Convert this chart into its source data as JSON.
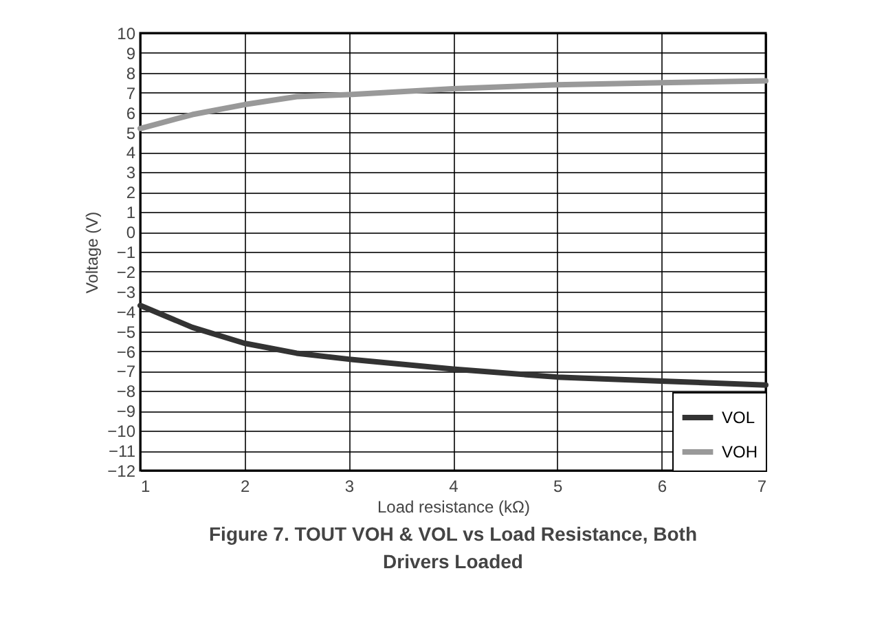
{
  "chart_data": {
    "type": "line",
    "title": "Figure 7. TOUT VOH & VOL vs Load Resistance, Both Drivers Loaded",
    "xlabel": "Load resistance (kΩ)",
    "ylabel": "Voltage (V)",
    "x": [
      1,
      1.5,
      2,
      2.5,
      3,
      4,
      5,
      6,
      7
    ],
    "series": [
      {
        "name": "VOL",
        "color": "#333333",
        "values": [
          -3.7,
          -4.8,
          -5.6,
          -6.1,
          -6.4,
          -6.9,
          -7.3,
          -7.5,
          -7.7
        ]
      },
      {
        "name": "VOH",
        "color": "#999999",
        "values": [
          5.2,
          5.9,
          6.4,
          6.8,
          6.9,
          7.2,
          7.4,
          7.5,
          7.6
        ]
      }
    ],
    "xlim": [
      1,
      7
    ],
    "xticks": [
      1,
      2,
      3,
      4,
      5,
      6,
      7
    ],
    "ylim": [
      -12,
      10
    ],
    "yticks": [
      -12,
      -11,
      -10,
      -9,
      -8,
      -7,
      -6,
      -5,
      -4,
      -3,
      -2,
      -1,
      0,
      1,
      2,
      3,
      4,
      5,
      6,
      7,
      8,
      9,
      10
    ],
    "grid": true,
    "legend": "bottom right",
    "marker": "none",
    "line_style": "solid"
  }
}
